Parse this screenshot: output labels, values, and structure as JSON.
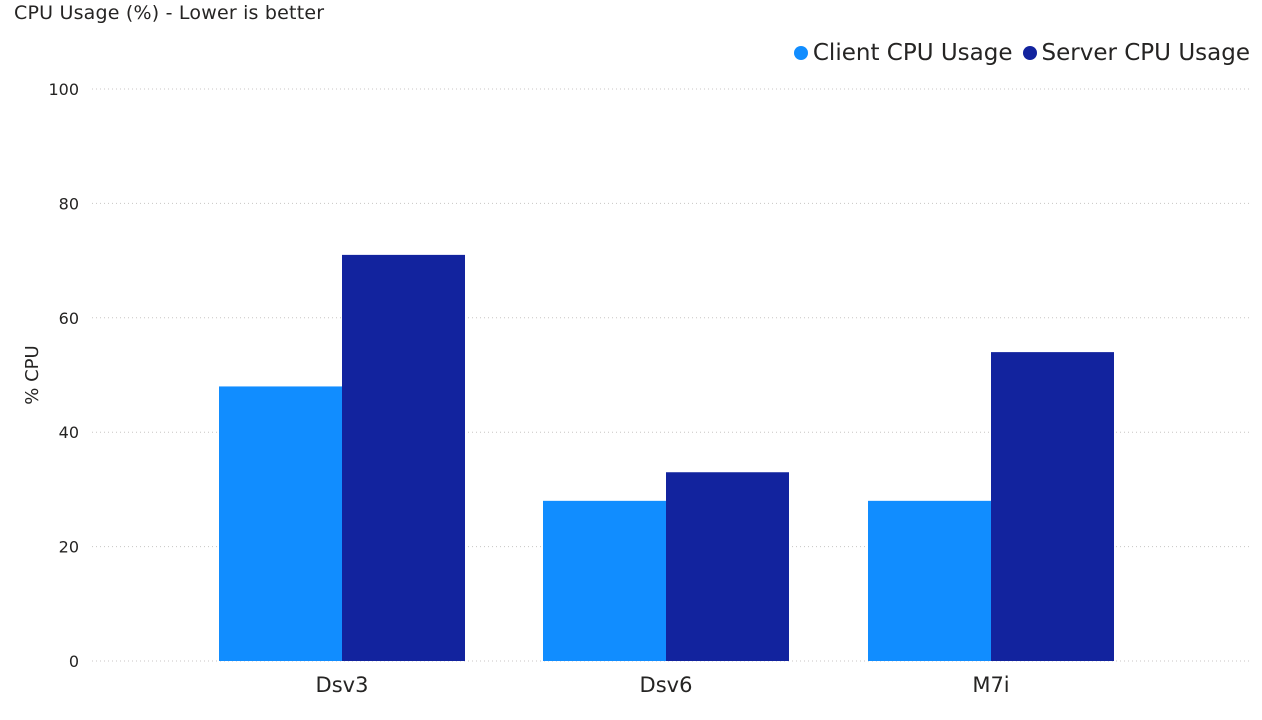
{
  "chart_data": {
    "type": "bar",
    "title": "CPU Usage (%) - Lower is better",
    "xlabel": "",
    "ylabel": "% CPU",
    "ylim": [
      0,
      100
    ],
    "yticks": [
      0,
      20,
      40,
      60,
      80,
      100
    ],
    "categories": [
      "Dsv3",
      "Dsv6",
      "M7i"
    ],
    "series": [
      {
        "name": "Client CPU Usage",
        "color": "#118dff",
        "values": [
          48,
          28,
          28
        ]
      },
      {
        "name": "Server CPU Usage",
        "color": "#12239e",
        "values": [
          71,
          33,
          54
        ]
      }
    ],
    "grid": true,
    "legend_position": "top-right"
  }
}
